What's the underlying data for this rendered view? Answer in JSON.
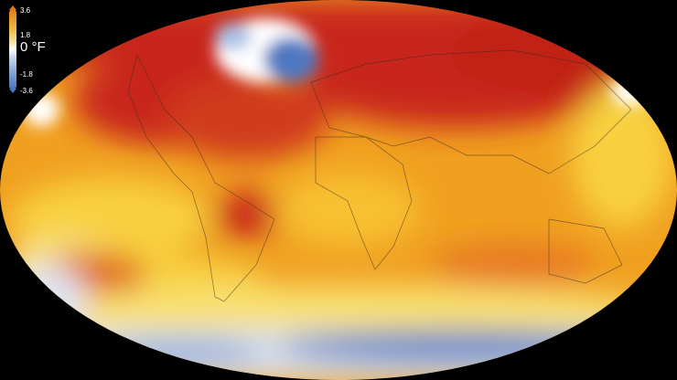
{
  "legend": {
    "unit": "0 °F",
    "ticks": [
      "3.6",
      "1.8",
      "-1.8",
      "-3.6"
    ],
    "colors": {
      "max": "#e07a1a",
      "zero": "#ffffff",
      "min": "#4d73bd"
    }
  },
  "map": {
    "projection": "robinson-like ellipse",
    "colors": {
      "hot": "#c8281a",
      "warm": "#f0a020",
      "mild": "#f8d850",
      "neutral": "#ffffff",
      "cool": "#5a82c8",
      "background": "#000000"
    }
  }
}
